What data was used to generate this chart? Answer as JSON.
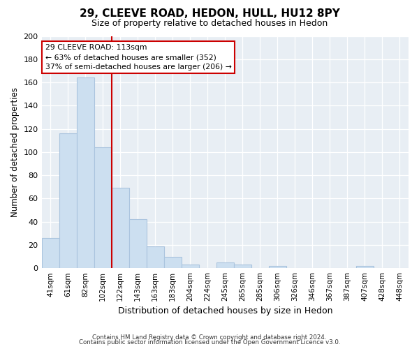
{
  "title": "29, CLEEVE ROAD, HEDON, HULL, HU12 8PY",
  "subtitle": "Size of property relative to detached houses in Hedon",
  "xlabel": "Distribution of detached houses by size in Hedon",
  "ylabel": "Number of detached properties",
  "bar_labels": [
    "41sqm",
    "61sqm",
    "82sqm",
    "102sqm",
    "122sqm",
    "143sqm",
    "163sqm",
    "183sqm",
    "204sqm",
    "224sqm",
    "245sqm",
    "265sqm",
    "285sqm",
    "306sqm",
    "326sqm",
    "346sqm",
    "367sqm",
    "387sqm",
    "407sqm",
    "428sqm",
    "448sqm"
  ],
  "bar_values": [
    26,
    116,
    164,
    104,
    69,
    42,
    19,
    10,
    3,
    0,
    5,
    3,
    0,
    2,
    0,
    0,
    0,
    0,
    2,
    0,
    0
  ],
  "bar_color": "#ccdff0",
  "bar_edge_color": "#aac4de",
  "vline_x": 3.5,
  "vline_color": "#cc0000",
  "annotation_title": "29 CLEEVE ROAD: 113sqm",
  "annotation_line1": "← 63% of detached houses are smaller (352)",
  "annotation_line2": "37% of semi-detached houses are larger (206) →",
  "annotation_box_color": "#ffffff",
  "annotation_box_edge": "#cc0000",
  "ylim": [
    0,
    200
  ],
  "yticks": [
    0,
    20,
    40,
    60,
    80,
    100,
    120,
    140,
    160,
    180,
    200
  ],
  "footer1": "Contains HM Land Registry data © Crown copyright and database right 2024.",
  "footer2": "Contains public sector information licensed under the Open Government Licence v3.0.",
  "bg_color": "#e8eef4"
}
